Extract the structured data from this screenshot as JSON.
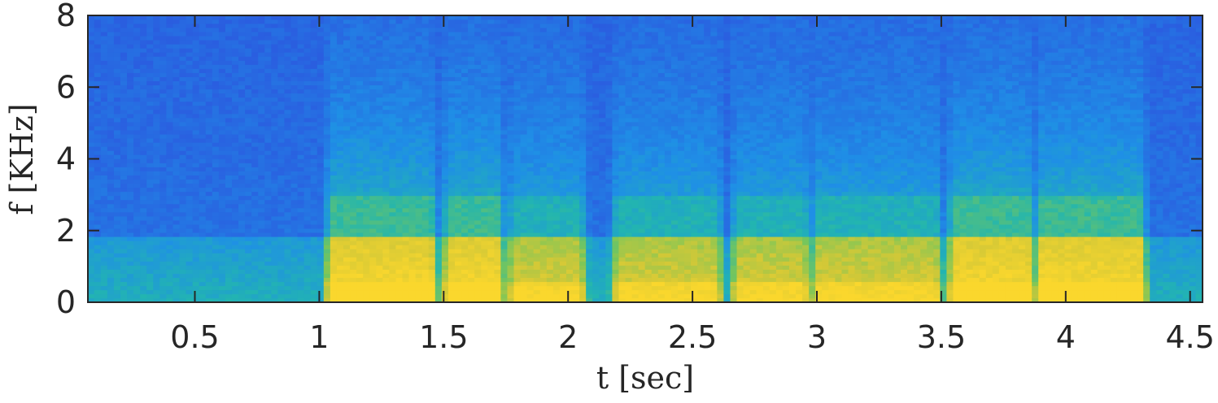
{
  "chart_data": {
    "type": "heatmap",
    "title": "",
    "xlabel": "t [sec]",
    "ylabel": "f [KHz]",
    "xlim": [
      0.07,
      4.55
    ],
    "ylim": [
      0,
      8
    ],
    "x_ticks": [
      0.5,
      1,
      1.5,
      2,
      2.5,
      3,
      3.5,
      4,
      4.5
    ],
    "x_tick_labels": [
      "0.5",
      "1",
      "1.5",
      "2",
      "2.5",
      "3",
      "3.5",
      "4",
      "4.5"
    ],
    "y_ticks": [
      0,
      2,
      4,
      6,
      8
    ],
    "y_tick_labels": [
      "0",
      "2",
      "4",
      "6",
      "8"
    ],
    "colormap": "parula",
    "colors": {
      "low": "#2a5fe0",
      "mid_low": "#1f8fe6",
      "mid": "#22b5b0",
      "mid_high": "#8fc84a",
      "high": "#f9c930"
    },
    "energy_segments_sec": [
      {
        "t_start": 1.05,
        "t_end": 1.45,
        "level": "high"
      },
      {
        "t_start": 1.52,
        "t_end": 1.72,
        "level": "high"
      },
      {
        "t_start": 1.78,
        "t_end": 2.05,
        "level": "mid_high"
      },
      {
        "t_start": 2.2,
        "t_end": 2.6,
        "level": "mid_high"
      },
      {
        "t_start": 2.68,
        "t_end": 2.95,
        "level": "mid_high"
      },
      {
        "t_start": 3.0,
        "t_end": 3.48,
        "level": "mid_high"
      },
      {
        "t_start": 3.55,
        "t_end": 3.85,
        "level": "high"
      },
      {
        "t_start": 3.9,
        "t_end": 4.3,
        "level": "high"
      }
    ],
    "band_edge_khz": 1.85,
    "grid": false
  }
}
